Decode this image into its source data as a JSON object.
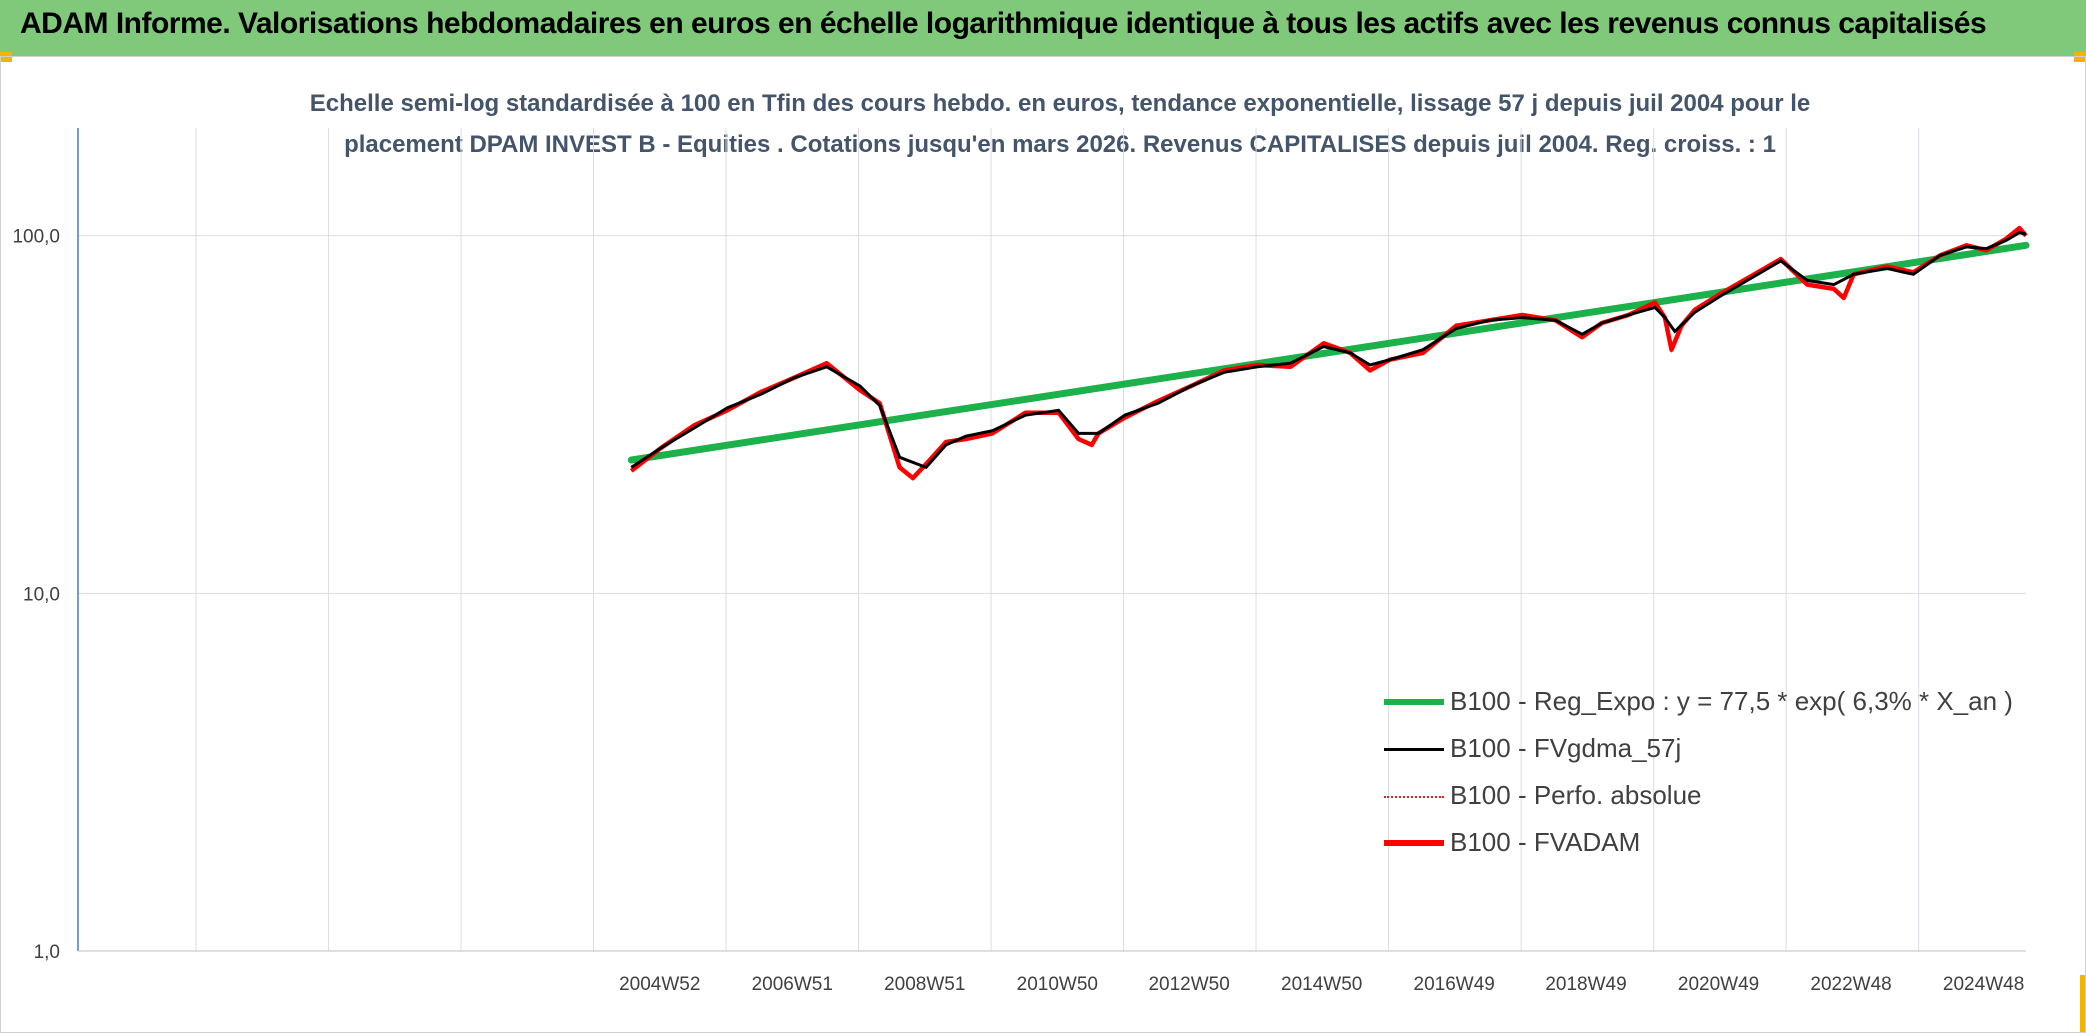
{
  "header": {
    "title": "ADAM Informe. Valorisations hebdomadaires en euros en échelle logarithmique identique à tous les actifs avec les revenus connus capitalisés"
  },
  "chart_data": {
    "type": "line",
    "title_line1": "Echelle semi-log standardisée à 100 en Tfin des cours hebdo. en euros, tendance exponentielle, lissage 57 j depuis juil 2004 pour le",
    "title_line2": "placement DPAM INVEST B - Equities . Cotations jusqu'en mars 2026. Revenus CAPITALISES depuis juil 2004. Reg. croiss. : 1",
    "y_scale": "log",
    "ylim": [
      1,
      200
    ],
    "y_ticks": [
      1,
      10,
      100
    ],
    "y_tick_labels": [
      "1,0",
      "10,0",
      "100,0"
    ],
    "xlim": [
      1996.2,
      2025.6
    ],
    "x_ticks": [
      2004.98,
      2006.98,
      2008.98,
      2010.98,
      2012.97,
      2014.97,
      2016.97,
      2018.96,
      2020.96,
      2022.96,
      2024.96
    ],
    "x_tick_labels": [
      "2004W52",
      "2006W51",
      "2008W51",
      "2010W50",
      "2012W50",
      "2014W50",
      "2016W49",
      "2018W49",
      "2020W49",
      "2022W48",
      "2024W48"
    ],
    "grid": true,
    "legend_position": "bottom-right",
    "colors": {
      "regression": "#1db14b",
      "smoothed": "#000000",
      "absolute": "#e8191f",
      "fvadam": "#ff0000",
      "axis": "#4a78c2",
      "grid": "#d9dde4"
    },
    "series": [
      {
        "name": "B100 - Reg_Expo : y = 77,5 * exp( 6,3% *  X_an )",
        "style": "regression",
        "x": [
          2004.55,
          2025.6
        ],
        "y": [
          23.6,
          94
        ]
      },
      {
        "name": "B100 - FVgdma_57j",
        "style": "smoothed",
        "x": [
          2004.55,
          2005.0,
          2005.5,
          2006.0,
          2006.5,
          2007.0,
          2007.5,
          2008.0,
          2008.3,
          2008.6,
          2009.0,
          2009.3,
          2009.6,
          2010.0,
          2010.5,
          2011.0,
          2011.3,
          2011.6,
          2012.0,
          2012.5,
          2013.0,
          2013.5,
          2014.0,
          2014.5,
          2015.0,
          2015.4,
          2015.7,
          2016.0,
          2016.5,
          2017.0,
          2017.5,
          2018.0,
          2018.5,
          2018.9,
          2019.2,
          2019.6,
          2020.0,
          2020.15,
          2020.3,
          2020.6,
          2021.0,
          2021.5,
          2021.9,
          2022.3,
          2022.7,
          2023.0,
          2023.5,
          2023.9,
          2024.3,
          2024.7,
          2025.0,
          2025.3,
          2025.5,
          2025.6
        ],
        "y": [
          22.5,
          25.5,
          29,
          33,
          36,
          40,
          43,
          38,
          33.5,
          24,
          22.5,
          26,
          27.5,
          28.5,
          31.5,
          32.5,
          28,
          28,
          31.5,
          34,
          38,
          41.5,
          43,
          44,
          49,
          47,
          43.5,
          45,
          48,
          55,
          58,
          59,
          58,
          53,
          57,
          60,
          63,
          59,
          54,
          61,
          68,
          77,
          85,
          75,
          73,
          78,
          81,
          78,
          88,
          93,
          92,
          97,
          102,
          101
        ]
      },
      {
        "name": "B100 - Perfo. absolue",
        "style": "absolute",
        "x": [
          2004.55,
          2005.0,
          2005.5,
          2006.0,
          2006.5,
          2007.0,
          2007.5,
          2008.0,
          2008.3,
          2008.6,
          2008.8,
          2009.0,
          2009.3,
          2009.6,
          2010.0,
          2010.5,
          2011.0,
          2011.3,
          2011.5,
          2011.6,
          2012.0,
          2012.5,
          2013.0,
          2013.5,
          2014.0,
          2014.5,
          2015.0,
          2015.4,
          2015.7,
          2016.0,
          2016.5,
          2017.0,
          2017.5,
          2018.0,
          2018.5,
          2018.9,
          2019.2,
          2019.6,
          2020.0,
          2020.15,
          2020.25,
          2020.4,
          2020.6,
          2021.0,
          2021.5,
          2021.9,
          2022.3,
          2022.7,
          2022.85,
          2023.0,
          2023.5,
          2023.9,
          2024.3,
          2024.7,
          2025.0,
          2025.3,
          2025.5,
          2025.6
        ],
        "y": [
          22,
          25.5,
          29.5,
          32.5,
          36.5,
          40,
          44,
          37,
          34,
          22.5,
          21,
          23,
          26.5,
          27,
          28,
          32,
          32,
          27,
          26,
          28,
          31,
          34.5,
          38,
          42,
          43.5,
          43,
          50,
          47,
          42,
          45,
          47,
          56,
          58,
          60,
          58,
          52,
          57,
          60,
          65,
          59,
          48,
          56,
          62,
          69,
          78,
          86,
          73,
          71,
          67,
          78,
          82,
          79,
          88,
          94,
          91,
          98,
          105,
          100
        ]
      },
      {
        "name": "B100 - FVADAM",
        "style": "fvadam",
        "x": [
          2004.55,
          2005.0,
          2005.5,
          2006.0,
          2006.5,
          2007.0,
          2007.5,
          2008.0,
          2008.3,
          2008.6,
          2008.8,
          2009.0,
          2009.3,
          2009.6,
          2010.0,
          2010.5,
          2011.0,
          2011.3,
          2011.5,
          2011.6,
          2012.0,
          2012.5,
          2013.0,
          2013.5,
          2014.0,
          2014.5,
          2015.0,
          2015.4,
          2015.7,
          2016.0,
          2016.5,
          2017.0,
          2017.5,
          2018.0,
          2018.5,
          2018.9,
          2019.2,
          2019.6,
          2020.0,
          2020.15,
          2020.25,
          2020.4,
          2020.6,
          2021.0,
          2021.5,
          2021.9,
          2022.3,
          2022.7,
          2022.85,
          2023.0,
          2023.5,
          2023.9,
          2024.3,
          2024.7,
          2025.0,
          2025.3,
          2025.5,
          2025.6
        ],
        "y": [
          22,
          25.5,
          29.5,
          32.5,
          36.5,
          40,
          44,
          37,
          34,
          22.5,
          21,
          23,
          26.5,
          27,
          28,
          32,
          32,
          27,
          26,
          28,
          31,
          34.5,
          38,
          42,
          43.5,
          43,
          50,
          47,
          42,
          45,
          47,
          56,
          58,
          60,
          58,
          52,
          57,
          60,
          65,
          59,
          48,
          56,
          62,
          69,
          78,
          86,
          73,
          71,
          67,
          78,
          82,
          79,
          88,
          94,
          91,
          98,
          105,
          100
        ]
      }
    ]
  }
}
